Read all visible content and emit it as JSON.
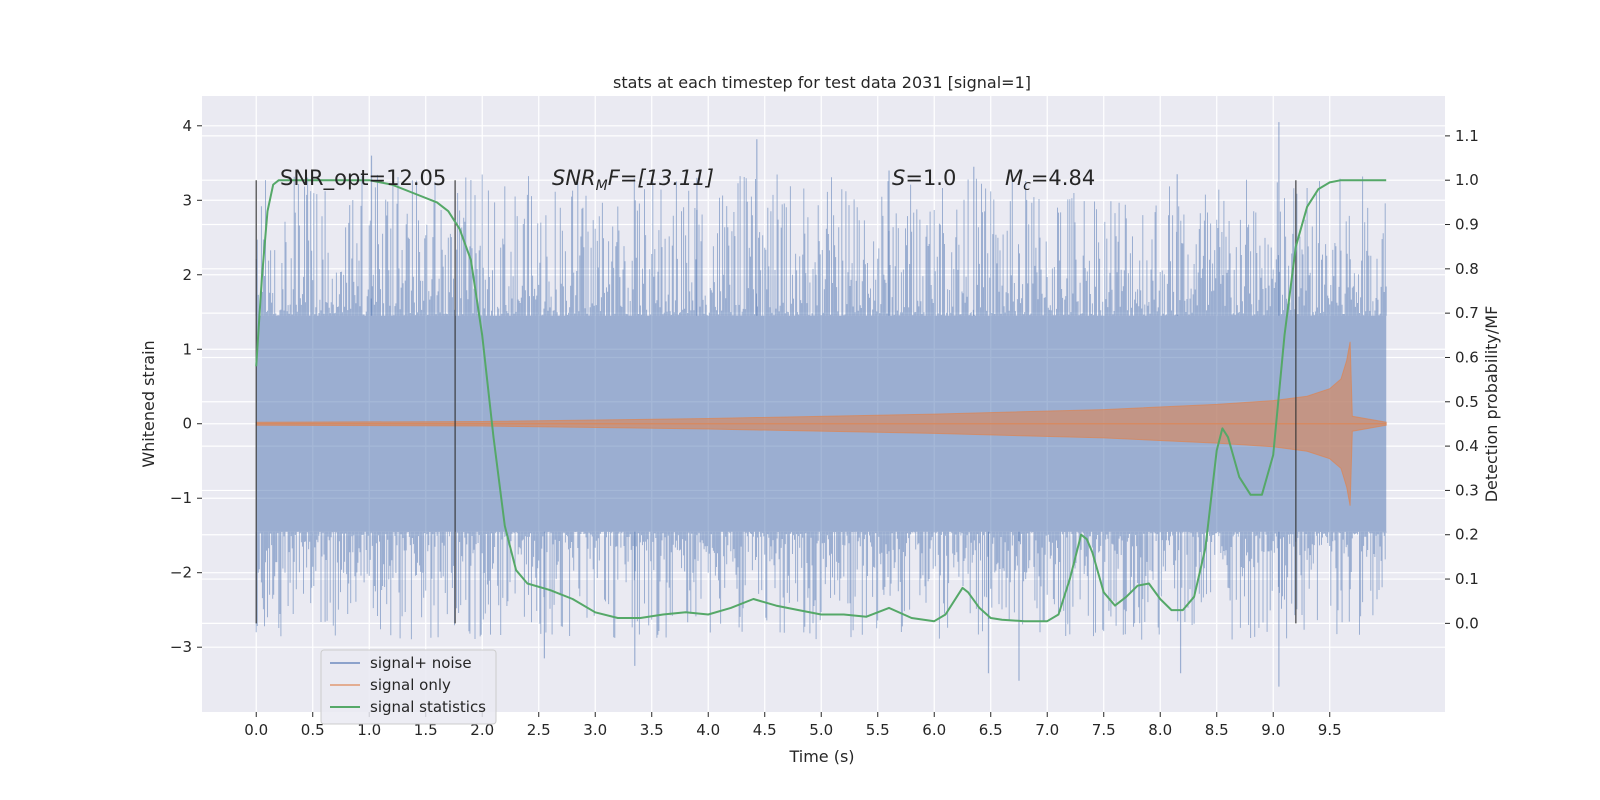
{
  "chart_data": {
    "type": "line",
    "title": "stats at each timestep for test data 2031 [signal=1]",
    "xlabel": "Time (s)",
    "ylabel": "Whitened strain",
    "y2label": "Detection probability/MF",
    "xlim": [
      -0.48,
      10.52
    ],
    "ylim": [
      -3.87,
      4.4
    ],
    "y2lim": [
      -0.2,
      1.19
    ],
    "xticks": [
      "0.0",
      "0.5",
      "1.0",
      "1.5",
      "2.0",
      "2.5",
      "3.0",
      "3.5",
      "4.0",
      "4.5",
      "5.0",
      "5.5",
      "6.0",
      "6.5",
      "7.0",
      "7.5",
      "8.0",
      "8.5",
      "9.0",
      "9.5"
    ],
    "yticks": [
      "−3",
      "−2",
      "−1",
      "0",
      "1",
      "2",
      "3",
      "4"
    ],
    "y2ticks": [
      "0.0",
      "0.1",
      "0.2",
      "0.3",
      "0.4",
      "0.5",
      "0.6",
      "0.7",
      "0.8",
      "0.9",
      "1.0",
      "1.1"
    ],
    "grid": true,
    "legend_position": "bottom-left",
    "annotations": {
      "snr_opt": "SNR_opt=12.05",
      "snr_mf_main": "SNR",
      "snr_mf_sub": "M",
      "snr_mf_rest": "F=[13.11]",
      "s_main": "S",
      "s_rest": "=1.0",
      "mc_main": "M",
      "mc_sub": "c",
      "mc_rest": "=4.84"
    },
    "vertical_lines": [
      0.0,
      1.76,
      9.2
    ],
    "series": [
      {
        "name": "signal+ noise",
        "color": "#4c72b0",
        "x_range": [
          0.0,
          10.0
        ],
        "core_amplitude": 1.45,
        "max": 4.05,
        "min": -3.53
      },
      {
        "name": "signal only",
        "color": "#dd8452",
        "x": [
          0.0,
          2.0,
          4.0,
          6.0,
          7.5,
          8.5,
          9.0,
          9.3,
          9.5,
          9.6,
          9.65,
          9.68,
          9.7,
          10.0
        ],
        "envelope": [
          0.02,
          0.03,
          0.07,
          0.13,
          0.19,
          0.26,
          0.31,
          0.37,
          0.47,
          0.6,
          0.85,
          1.1,
          0.1,
          0.02
        ]
      },
      {
        "name": "signal statistics",
        "color": "#55a868",
        "x": [
          0.0,
          0.05,
          0.1,
          0.15,
          0.2,
          0.3,
          0.5,
          0.8,
          1.0,
          1.2,
          1.4,
          1.6,
          1.7,
          1.8,
          1.9,
          2.0,
          2.1,
          2.2,
          2.3,
          2.4,
          2.6,
          2.8,
          3.0,
          3.2,
          3.4,
          3.6,
          3.8,
          4.0,
          4.2,
          4.4,
          4.6,
          4.8,
          5.0,
          5.2,
          5.4,
          5.6,
          5.8,
          6.0,
          6.1,
          6.2,
          6.25,
          6.3,
          6.4,
          6.5,
          6.6,
          6.8,
          7.0,
          7.1,
          7.2,
          7.3,
          7.35,
          7.4,
          7.5,
          7.6,
          7.7,
          7.8,
          7.9,
          8.0,
          8.1,
          8.2,
          8.3,
          8.4,
          8.5,
          8.55,
          8.6,
          8.7,
          8.8,
          8.9,
          9.0,
          9.1,
          9.2,
          9.3,
          9.4,
          9.5,
          9.6,
          9.8,
          10.0
        ],
        "y": [
          0.58,
          0.78,
          0.93,
          0.99,
          1.0,
          1.0,
          1.0,
          1.0,
          1.0,
          0.99,
          0.97,
          0.95,
          0.93,
          0.89,
          0.82,
          0.65,
          0.42,
          0.22,
          0.12,
          0.09,
          0.075,
          0.055,
          0.025,
          0.012,
          0.012,
          0.02,
          0.025,
          0.02,
          0.035,
          0.055,
          0.04,
          0.03,
          0.02,
          0.02,
          0.015,
          0.035,
          0.012,
          0.005,
          0.02,
          0.06,
          0.08,
          0.07,
          0.035,
          0.012,
          0.008,
          0.005,
          0.005,
          0.02,
          0.1,
          0.2,
          0.19,
          0.16,
          0.07,
          0.04,
          0.06,
          0.085,
          0.09,
          0.055,
          0.03,
          0.03,
          0.06,
          0.17,
          0.39,
          0.44,
          0.42,
          0.33,
          0.29,
          0.29,
          0.38,
          0.65,
          0.85,
          0.94,
          0.98,
          0.995,
          1.0,
          1.0,
          1.0
        ]
      }
    ]
  }
}
